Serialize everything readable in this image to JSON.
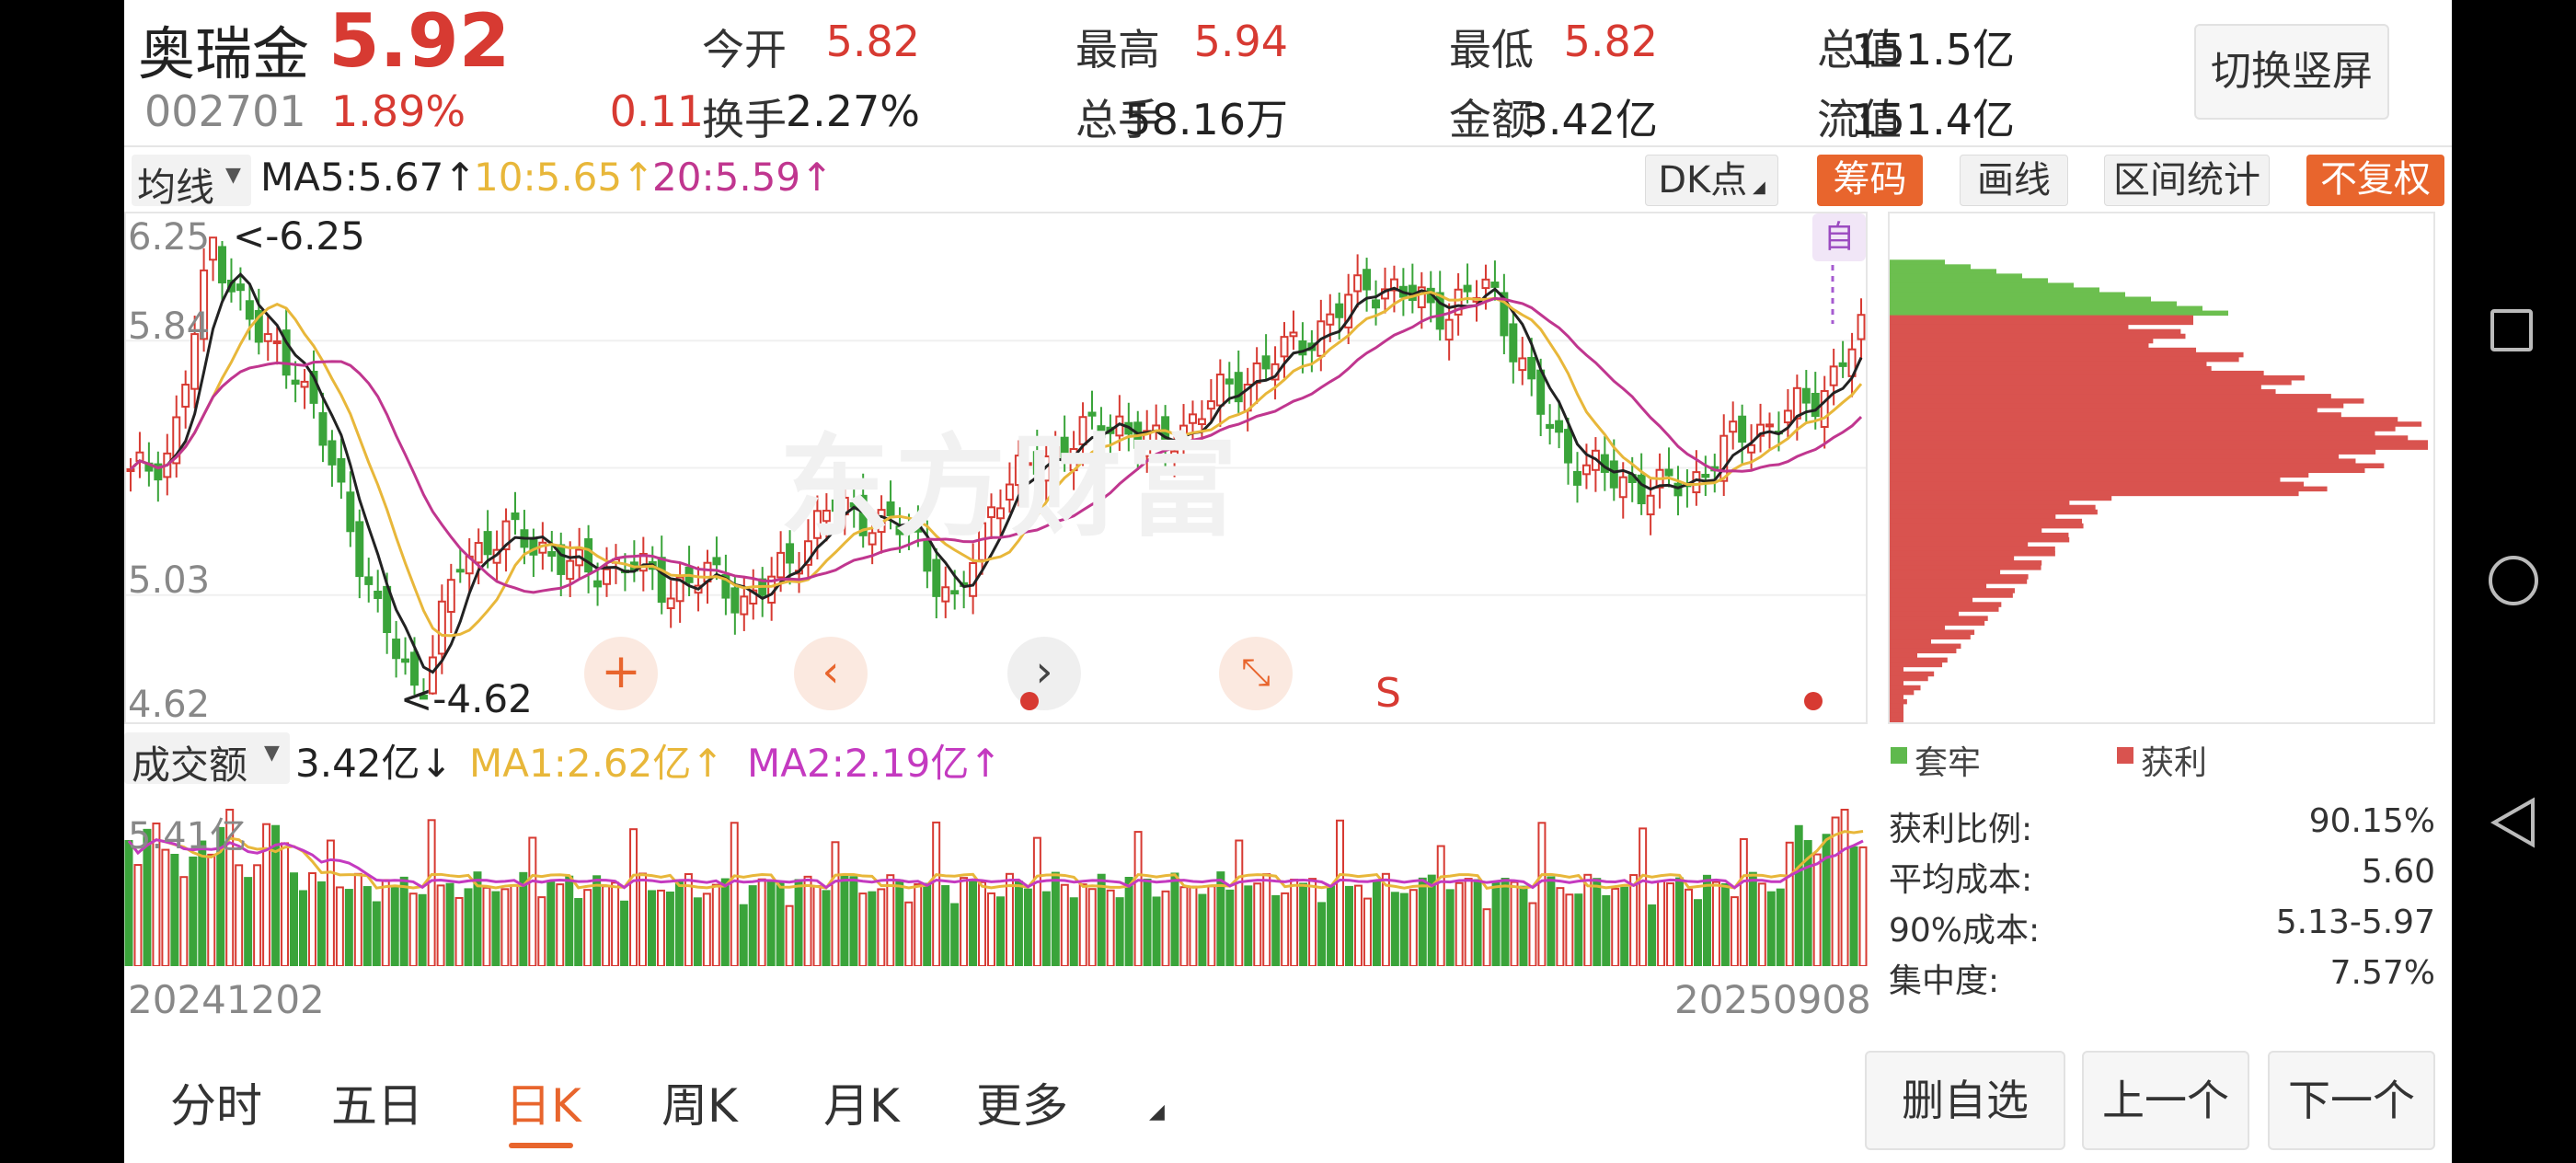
{
  "stock": {
    "name": "奥瑞金",
    "price": "5.92",
    "code": "002701",
    "change_pct": "1.89%",
    "change": "0.11",
    "switch_label": "切换竖屏"
  },
  "quotes": [
    {
      "label": "今开",
      "value": "5.82",
      "color": "red"
    },
    {
      "label": "最高",
      "value": "5.94",
      "color": "red"
    },
    {
      "label": "最低",
      "value": "5.82",
      "color": "red"
    },
    {
      "label": "总值",
      "value": "151.5亿",
      "color": "black"
    },
    {
      "label": "换手",
      "value": "2.27%",
      "color": "black"
    },
    {
      "label": "总手",
      "value": "58.16万",
      "color": "black"
    },
    {
      "label": "金额",
      "value": "3.42亿",
      "color": "black"
    },
    {
      "label": "流值",
      "value": "151.4亿",
      "color": "black"
    }
  ],
  "toolbar": {
    "ma_select": "均线",
    "ma5": "MA5:5.67↑",
    "ma10": "10:5.65↑",
    "ma20": "20:5.59↑",
    "dk": "DK点",
    "chip": "筹码",
    "draw": "画线",
    "interval": "区间统计",
    "adjust": "不复权"
  },
  "price_axis": [
    "6.25",
    "5.84",
    "5.03",
    "4.62"
  ],
  "annotations": {
    "high": "<-6.25",
    "low": "<-4.62",
    "self": "自",
    "s": "S"
  },
  "watermark": "东方财富",
  "volume": {
    "select": "成交额",
    "value": "3.42亿↓",
    "ma1": "MA1:2.62亿↑",
    "ma2": "MA2:2.19亿↑",
    "axis_max": "5.41亿"
  },
  "dates": {
    "start": "20241202",
    "end": "20250908"
  },
  "chips": {
    "legend_trapped": "套牢",
    "legend_profit": "获利",
    "stats": [
      {
        "label": "获利比例:",
        "value": "90.15%"
      },
      {
        "label": "平均成本:",
        "value": "5.60"
      },
      {
        "label": "90%成本:",
        "value": "5.13-5.97"
      },
      {
        "label": "集中度:",
        "value": "7.57%"
      }
    ]
  },
  "tabs": [
    "分时",
    "五日",
    "日K",
    "周K",
    "月K",
    "更多"
  ],
  "active_tab": "日K",
  "bottom_buttons": {
    "remove": "删自选",
    "prev": "上一个",
    "next": "下一个"
  },
  "colors": {
    "up": "#d73a32",
    "down": "#3aa43a",
    "ma5": "#222222",
    "ma10": "#e8b73a",
    "ma20": "#c0368f",
    "accent": "#e8652d",
    "vol_ma2": "#c43ac0"
  },
  "chart_data": {
    "type": "candlestick",
    "ylim": [
      4.62,
      6.25
    ],
    "x_start": "20241202",
    "x_end": "20250908",
    "series": [
      {
        "name": "MA5",
        "value": "5.67"
      },
      {
        "name": "10",
        "value": "5.65"
      },
      {
        "name": "20",
        "value": "5.59"
      }
    ],
    "close_trend": [
      5.4,
      5.5,
      6.25,
      5.92,
      5.8,
      5.4,
      4.9,
      4.62,
      5.1,
      5.2,
      5.15,
      5.05,
      5.1,
      5.0,
      5.05,
      4.95,
      5.1,
      5.3,
      5.25,
      5.2,
      4.92,
      5.35,
      5.45,
      5.55,
      5.6,
      5.5,
      5.65,
      5.75,
      5.85,
      5.95,
      6.1,
      6.05,
      6.0,
      6.1,
      5.7,
      5.45,
      5.4,
      5.35,
      5.4,
      5.55,
      5.6,
      5.7,
      5.92
    ]
  }
}
